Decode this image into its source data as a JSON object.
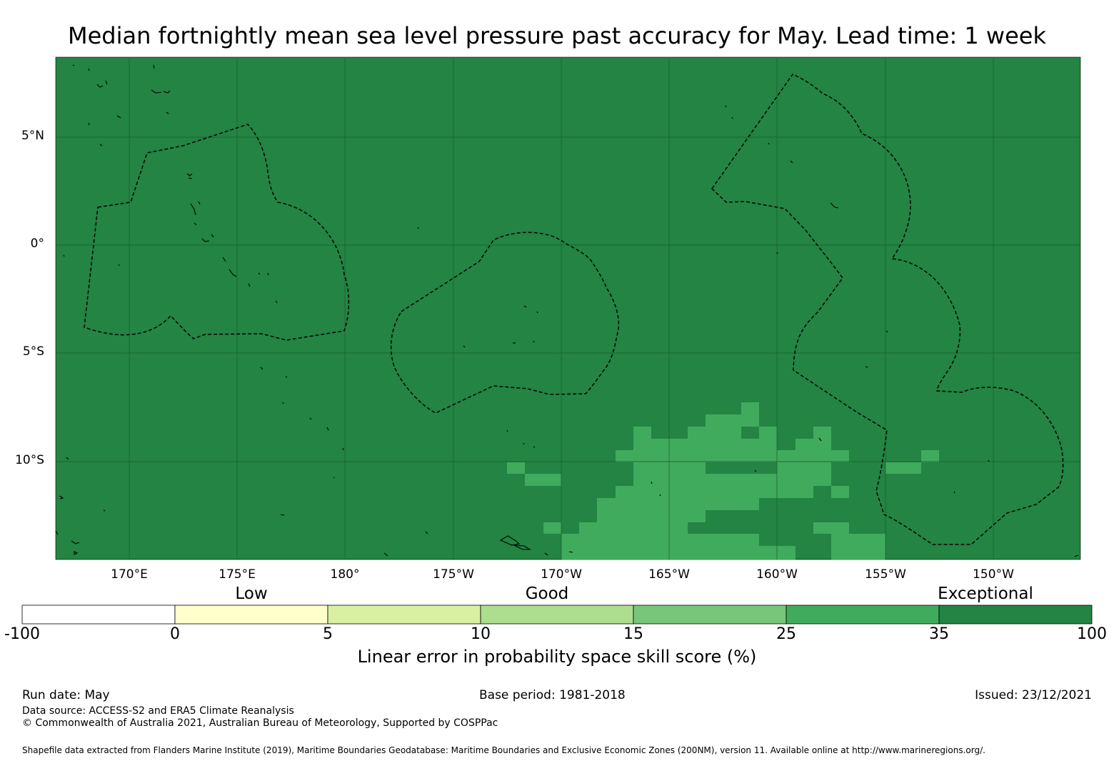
{
  "title": "Median fortnightly mean sea level pressure past accuracy for May. Lead time: 1 week",
  "map": {
    "lat_ticks": [
      "5°N",
      "0°",
      "5°S",
      "10°S"
    ],
    "lon_ticks": [
      "170°E",
      "175°E",
      "180°",
      "175°W",
      "170°W",
      "165°W",
      "160°W",
      "155°W",
      "150°W"
    ],
    "background_class": "35 to 100",
    "notes": "EEZ boundaries shown as dashed lines; coastlines in black"
  },
  "colorbar": {
    "categories": [
      "Low",
      "Good",
      "Exceptional"
    ],
    "ticks": [
      "-100",
      "0",
      "5",
      "10",
      "15",
      "25",
      "35",
      "100"
    ],
    "colors": [
      "#ffffff",
      "#ffffcc",
      "#d9f0a3",
      "#addd8e",
      "#78c679",
      "#41ab5d",
      "#238443"
    ],
    "label": "Linear error in probability space skill score (%)"
  },
  "footer": {
    "run_date": "Run date: May",
    "base_period": "Base period: 1981-2018",
    "issued": "Issued: 23/12/2021",
    "data_source": "Data source: ACCESS-S2 and ERA5 Climate Reanalysis",
    "copyright": "© Commonwealth of Australia 2021, Australian Bureau of Meteorology, Supported by COSPPac",
    "shapefile": "Shapefile data extracted from Flanders Marine Institute (2019), Maritime Boundaries Geodatabase: Maritime Boundaries and Exclusive Economic Zones (200NM), version 11. Available online at http://www.marineregions.org/."
  }
}
